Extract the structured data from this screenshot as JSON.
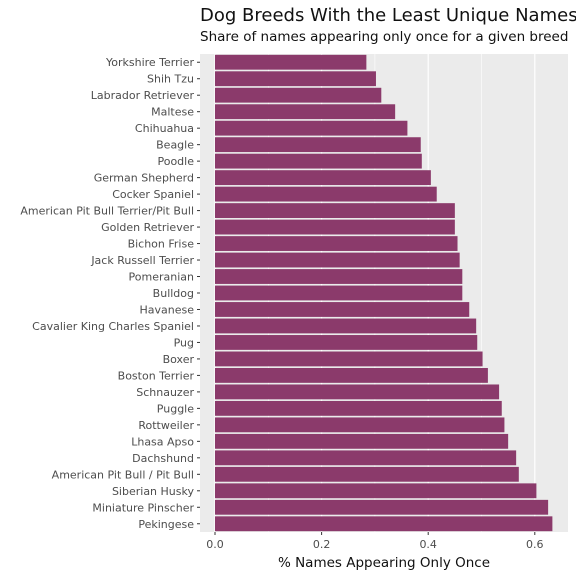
{
  "chart_data": {
    "type": "bar",
    "orientation": "horizontal",
    "title": "Dog Breeds With the Least Unique Names",
    "subtitle": "Share of names appearing only once for a given breed",
    "xlabel": "% Names Appearing Only Once",
    "ylabel": "",
    "xlim": [
      0,
      0.66
    ],
    "x_ticks": [
      0.0,
      0.2,
      0.4,
      0.6
    ],
    "x_tick_labels": [
      "0.0",
      "0.2",
      "0.4",
      "0.6"
    ],
    "grid": true,
    "bar_color": "#8b3a6b",
    "panel_background": "#ebebeb",
    "categories": [
      "Yorkshire Terrier",
      "Shih Tzu",
      "Labrador Retriever",
      "Maltese",
      "Chihuahua",
      "Beagle",
      "Poodle",
      "German Shepherd",
      "Cocker Spaniel",
      "American Pit Bull Terrier/Pit Bull",
      "Golden Retriever",
      "Bichon Frise",
      "Jack Russell Terrier",
      "Pomeranian",
      "Bulldog",
      "Havanese",
      "Cavalier King Charles Spaniel",
      "Pug",
      "Boxer",
      "Boston Terrier",
      "Schnauzer",
      "Puggle",
      "Rottweiler",
      "Lhasa Apso",
      "Dachshund",
      "American Pit Bull / Pit Bull",
      "Siberian Husky",
      "Miniature Pinscher",
      "Pekingese"
    ],
    "values": [
      0.284,
      0.302,
      0.312,
      0.338,
      0.361,
      0.386,
      0.388,
      0.405,
      0.416,
      0.45,
      0.45,
      0.455,
      0.459,
      0.464,
      0.464,
      0.477,
      0.49,
      0.492,
      0.502,
      0.512,
      0.533,
      0.538,
      0.543,
      0.55,
      0.565,
      0.57,
      0.603,
      0.625,
      0.633
    ]
  }
}
